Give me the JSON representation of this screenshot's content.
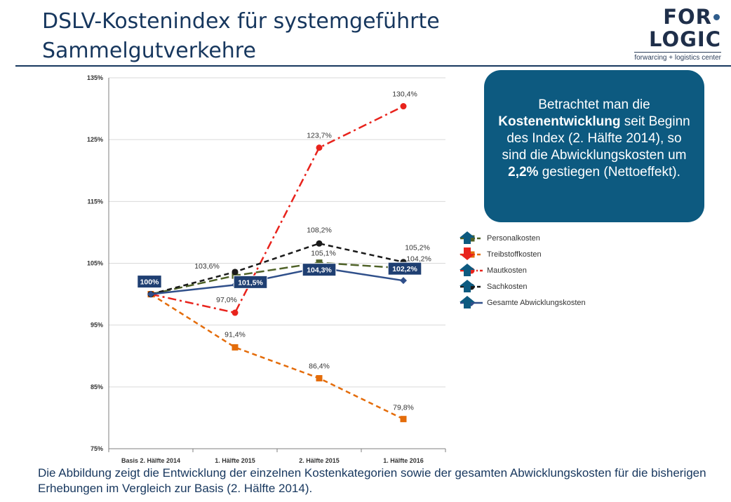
{
  "header": {
    "title": "DSLV-Kostenindex für systemgeführte Sammelgutverkehre",
    "logo_word_left": "FOR",
    "logo_word_right": "LOGIC",
    "logo_subtitle": "forwarcing + logistics center"
  },
  "callout": {
    "text_1": "Betrachtet man die",
    "bold_1": "Kostenentwicklung",
    "text_2": "seit Beginn des Index (2. Hälfte 2014), so sind die Abwicklungskosten um",
    "bold_2": "2,2%",
    "text_3": "gestiegen (Nettoeffekt).",
    "background_color": "#0d5a80"
  },
  "caption": "Die Abbildung zeigt die Entwicklung der einzelnen Kostenkategorien sowie der gesamten Abwicklungskosten für die bisherigen Erhebungen im Vergleich zur Basis (2. Hälfte 2014).",
  "legend": [
    {
      "label": "Personalkosten",
      "trend": "up",
      "trend_icon": "arrow-up-icon"
    },
    {
      "label": "Treibstoffkosten",
      "trend": "down",
      "trend_icon": "arrow-down-icon"
    },
    {
      "label": "Mautkosten",
      "trend": "up",
      "trend_icon": "arrow-up-icon"
    },
    {
      "label": "Sachkosten",
      "trend": "up",
      "trend_icon": "arrow-up-icon"
    },
    {
      "label": "Gesamte Abwicklungskosten",
      "trend": "up",
      "trend_icon": "arrow-up-icon"
    }
  ],
  "colors": {
    "arrow_up": "#0d5a80",
    "arrow_down": "#e8231c"
  },
  "chart_data": {
    "type": "line",
    "categories": [
      "Basis 2. Hälfte 2014",
      "1. Hälfte 2015",
      "2. Hälfte 2015",
      "1. Hälfte 2016"
    ],
    "ylim": [
      75,
      135
    ],
    "yticks": [
      75,
      85,
      95,
      105,
      115,
      125,
      135
    ],
    "ytick_labels": [
      "75%",
      "85%",
      "95%",
      "105%",
      "115%",
      "125%",
      "135%"
    ],
    "grid": true,
    "legend_position": "right",
    "series": [
      {
        "name": "Personalkosten",
        "values": [
          100,
          103,
          105.1,
          104.2
        ],
        "color": "#4f6228",
        "dash": "long-dash",
        "marker": "square",
        "labels": [
          null,
          null,
          "105,1%",
          "104,2%"
        ]
      },
      {
        "name": "Treibstoffkosten",
        "values": [
          100,
          91.4,
          86.4,
          79.8
        ],
        "color": "#e46c0a",
        "dash": "dash",
        "marker": "square",
        "labels": [
          null,
          "91,4%",
          "86,4%",
          "79,8%"
        ]
      },
      {
        "name": "Mautkosten",
        "values": [
          100,
          97.0,
          123.7,
          130.4
        ],
        "color": "#e8231c",
        "dash": "dash-dot",
        "marker": "circle",
        "labels": [
          null,
          "97,0%",
          "123,7%",
          "130,4%"
        ]
      },
      {
        "name": "Sachkosten",
        "values": [
          100,
          103.6,
          108.2,
          105.2
        ],
        "color": "#1a1a1a",
        "dash": "dash",
        "marker": "circle",
        "labels": [
          null,
          "103,6%",
          "108,2%",
          "105,2%"
        ]
      },
      {
        "name": "Gesamte Abwicklungskosten",
        "values": [
          100,
          101.5,
          104.3,
          102.2
        ],
        "color": "#2f4f8a",
        "dash": "solid",
        "marker": "diamond",
        "labels": [
          "100%",
          "101,5%",
          "104,3%",
          "102,2%"
        ],
        "label_style": "box",
        "label_box_color": "#1f3f72"
      }
    ]
  }
}
